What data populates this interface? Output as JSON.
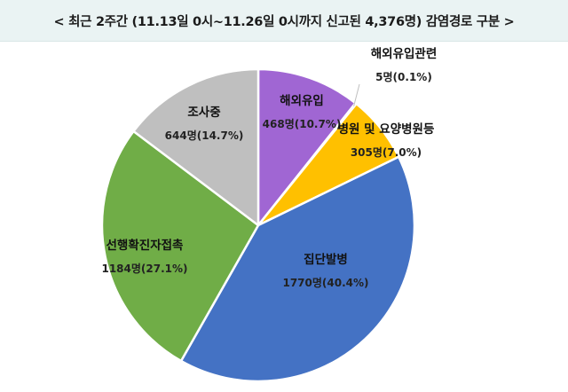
{
  "header": {
    "title": "< 최근 2주간 (11.13일 0시~11.26일 0시까지 신고된 4,376명) 감염경로 구분 >"
  },
  "chart_data": {
    "type": "pie",
    "title": "< 최근 2주간 (11.13일 0시~11.26일 0시까지 신고된 4,376명) 감염경로 구분 >",
    "total": 4376,
    "start_angle_deg": 0,
    "direction": "clockwise",
    "slices": [
      {
        "label": "해외유입",
        "value": 468,
        "value_label": "468명(10.7%)",
        "percent": 10.7,
        "color": "#a066d3"
      },
      {
        "label": "해외유입관련",
        "value": 5,
        "value_label": "5명(0.1%)",
        "percent": 0.1,
        "color": "#4472c4"
      },
      {
        "label": "병원 및 요양병원등",
        "value": 305,
        "value_label": "305명(7.0%)",
        "percent": 7.0,
        "color": "#ffc000"
      },
      {
        "label": "집단발병",
        "value": 1770,
        "value_label": "1770명(40.4%)",
        "percent": 40.4,
        "color": "#4472c4"
      },
      {
        "label": "선행확진자접촉",
        "value": 1184,
        "value_label": "1184명(27.1%)",
        "percent": 27.1,
        "color": "#70ad47"
      },
      {
        "label": "조사중",
        "value": 644,
        "value_label": "644명(14.7%)",
        "percent": 14.7,
        "color": "#bfbfbf"
      }
    ]
  }
}
